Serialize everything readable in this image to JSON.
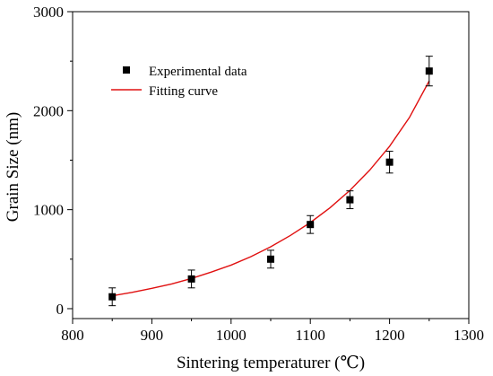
{
  "chart_data": {
    "type": "scatter",
    "xlabel": "Sintering temperaturer (℃)",
    "ylabel": "Grain Size (nm)",
    "xlim": [
      800,
      1300
    ],
    "ylim": [
      -100,
      3000
    ],
    "x_ticks": [
      "800",
      "900",
      "1000",
      "1100",
      "1200",
      "1300"
    ],
    "y_ticks": [
      "0",
      "1000",
      "2000",
      "3000"
    ],
    "grid": false,
    "legend_position": "top-left",
    "series": [
      {
        "name": "Experimental data",
        "kind": "scatter",
        "marker": "square",
        "color": "#000000",
        "x": [
          850,
          950,
          1050,
          1100,
          1150,
          1200,
          1250
        ],
        "y": [
          120,
          300,
          500,
          850,
          1100,
          1480,
          2400
        ],
        "error": [
          90,
          90,
          90,
          90,
          90,
          110,
          150
        ]
      },
      {
        "name": "Fitting curve",
        "kind": "line",
        "color": "#e01010",
        "x": [
          850,
          875,
          900,
          925,
          950,
          975,
          1000,
          1025,
          1050,
          1075,
          1100,
          1125,
          1150,
          1175,
          1200,
          1225,
          1250
        ],
        "y": [
          130,
          165,
          205,
          250,
          305,
          370,
          440,
          525,
          625,
          740,
          870,
          1020,
          1195,
          1400,
          1640,
          1930,
          2300
        ]
      }
    ]
  }
}
